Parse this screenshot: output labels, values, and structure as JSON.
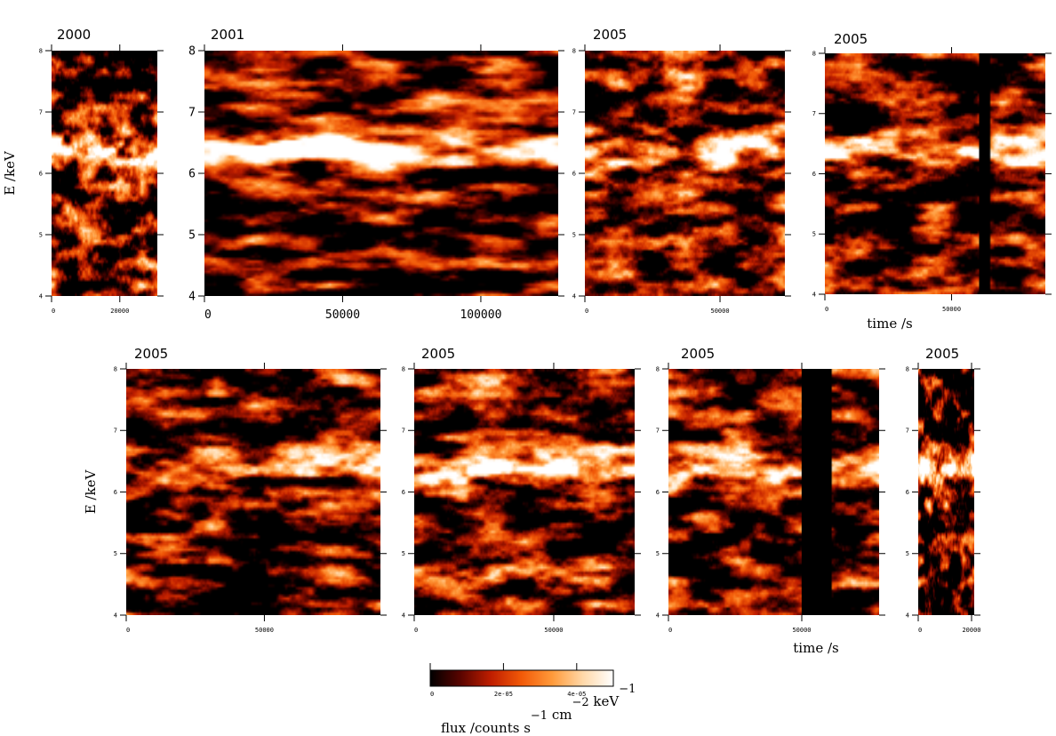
{
  "chart_data": {
    "type": "heatmap",
    "colormap": [
      "#000000",
      "#5a0400",
      "#c01e00",
      "#f25a08",
      "#ff9a3a",
      "#ffd8a8",
      "#ffffff"
    ],
    "panels": [
      {
        "year": "2000",
        "x_range": [
          0,
          31000
        ],
        "y_range": [
          4,
          8
        ],
        "x_ticks": [
          0,
          20000
        ],
        "x_tick_labels": [
          "0",
          "20000"
        ],
        "y_ticks": [
          4,
          5,
          6,
          7,
          8
        ],
        "y_tick_labels": [
          "4",
          "5",
          "6",
          "7",
          "8"
        ],
        "ylabel": "E /keV",
        "xlabel": "",
        "gaps": [],
        "line_strength": 0.85
      },
      {
        "year": "2001",
        "x_range": [
          0,
          128000
        ],
        "y_range": [
          4,
          8
        ],
        "x_ticks": [
          0,
          50000,
          100000
        ],
        "x_tick_labels": [
          "0",
          "50000",
          "100000"
        ],
        "y_ticks": [
          4,
          5,
          6,
          7,
          8
        ],
        "y_tick_labels": [
          "4",
          "5",
          "6",
          "7",
          "8"
        ],
        "ylabel": "",
        "xlabel": "",
        "gaps": [],
        "line_strength": 1.0
      },
      {
        "year": "2005",
        "x_range": [
          0,
          74000
        ],
        "y_range": [
          4,
          8
        ],
        "x_ticks": [
          0,
          50000
        ],
        "x_tick_labels": [
          "0",
          "50000"
        ],
        "y_ticks": [
          4,
          5,
          6,
          7,
          8
        ],
        "y_tick_labels": [
          "4",
          "5",
          "6",
          "7",
          "8"
        ],
        "ylabel": "",
        "xlabel": "",
        "gaps": [],
        "line_strength": 0.6
      },
      {
        "year": "2005",
        "x_range": [
          0,
          87000
        ],
        "y_range": [
          4,
          8
        ],
        "x_ticks": [
          0,
          50000
        ],
        "x_tick_labels": [
          "0",
          "50000"
        ],
        "y_ticks": [
          4,
          5,
          6,
          7,
          8
        ],
        "y_tick_labels": [
          "4",
          "5",
          "6",
          "7",
          "8"
        ],
        "ylabel": "",
        "xlabel": "time /s",
        "gaps": [
          [
            61000,
            65000
          ]
        ],
        "line_strength": 0.75
      },
      {
        "year": "2005",
        "x_range": [
          0,
          92000
        ],
        "y_range": [
          4,
          8
        ],
        "x_ticks": [
          0,
          50000
        ],
        "x_tick_labels": [
          "0",
          "50000"
        ],
        "y_ticks": [
          4,
          5,
          6,
          7,
          8
        ],
        "y_tick_labels": [
          "4",
          "5",
          "6",
          "7",
          "8"
        ],
        "ylabel": "E /keV",
        "xlabel": "",
        "gaps": [],
        "line_strength": 0.6
      },
      {
        "year": "2005",
        "x_range": [
          0,
          79000
        ],
        "y_range": [
          4,
          8
        ],
        "x_ticks": [
          0,
          50000
        ],
        "x_tick_labels": [
          "0",
          "50000"
        ],
        "y_ticks": [
          4,
          5,
          6,
          7,
          8
        ],
        "y_tick_labels": [
          "4",
          "5",
          "6",
          "7",
          "8"
        ],
        "ylabel": "",
        "xlabel": "",
        "gaps": [],
        "line_strength": 0.75
      },
      {
        "year": "2005",
        "x_range": [
          0,
          79000
        ],
        "y_range": [
          4,
          8
        ],
        "x_ticks": [
          0,
          50000
        ],
        "x_tick_labels": [
          "0",
          "50000"
        ],
        "y_ticks": [
          4,
          5,
          6,
          7,
          8
        ],
        "y_tick_labels": [
          "4",
          "5",
          "6",
          "7",
          "8"
        ],
        "ylabel": "",
        "xlabel": "time /s",
        "gaps": [
          [
            50000,
            61000
          ]
        ],
        "line_strength": 0.6
      },
      {
        "year": "2005",
        "x_range": [
          0,
          21000
        ],
        "y_range": [
          4,
          8
        ],
        "x_ticks": [
          0,
          20000
        ],
        "x_tick_labels": [
          "0",
          "20000"
        ],
        "y_ticks": [
          4,
          5,
          6,
          7,
          8
        ],
        "y_tick_labels": [
          "4",
          "5",
          "6",
          "7",
          "8"
        ],
        "ylabel": "",
        "xlabel": "",
        "gaps": [],
        "line_strength": 0.65
      }
    ],
    "colorbar": {
      "range": [
        0,
        5e-05
      ],
      "ticks": [
        0,
        2e-05,
        4e-05
      ],
      "tick_labels": [
        "0",
        "2e-05",
        "4e-05"
      ],
      "label": "flux /counts s",
      "label_parts": [
        {
          "text": "flux /counts s",
          "sup": "−1"
        },
        {
          "text": " cm",
          "sup": "−2"
        },
        {
          "text": " keV",
          "sup": "−1"
        }
      ]
    }
  }
}
